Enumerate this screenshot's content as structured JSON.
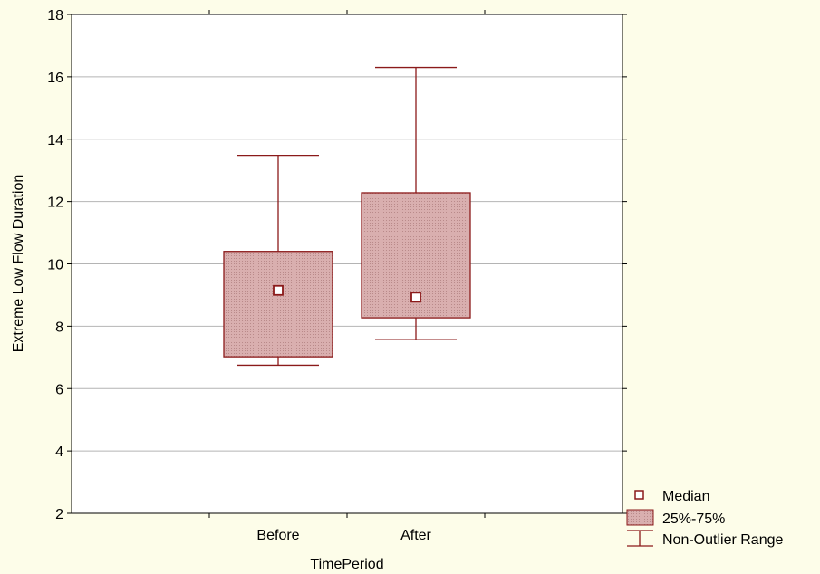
{
  "chart_data": {
    "type": "boxplot",
    "xlabel": "TimePeriod",
    "ylabel": "Extreme Low Flow Duration",
    "ylim": [
      2,
      18
    ],
    "yticks": [
      2,
      4,
      6,
      8,
      10,
      12,
      14,
      16,
      18
    ],
    "grid": true,
    "categories": [
      "Before",
      "After"
    ],
    "boxes": [
      {
        "category": "Before",
        "min": 6.75,
        "q1": 7.02,
        "median": 9.15,
        "q3": 10.4,
        "max": 13.48
      },
      {
        "category": "After",
        "min": 7.57,
        "q1": 8.27,
        "median": 8.93,
        "q3": 12.28,
        "max": 16.3
      }
    ],
    "legend": {
      "position": "bottom-right",
      "items": [
        {
          "key": "median",
          "label": "Median"
        },
        {
          "key": "box",
          "label": "25%-75%"
        },
        {
          "key": "whisker",
          "label": "Non-Outlier Range"
        }
      ]
    },
    "colors": {
      "stroke": "#8b1a1a",
      "box_fill": "#d4a7a7",
      "median_fill": "#ffffff",
      "grid": "#b4b4b4",
      "plot_bg": "#ffffff",
      "page_bg": "#fdfde9"
    }
  }
}
